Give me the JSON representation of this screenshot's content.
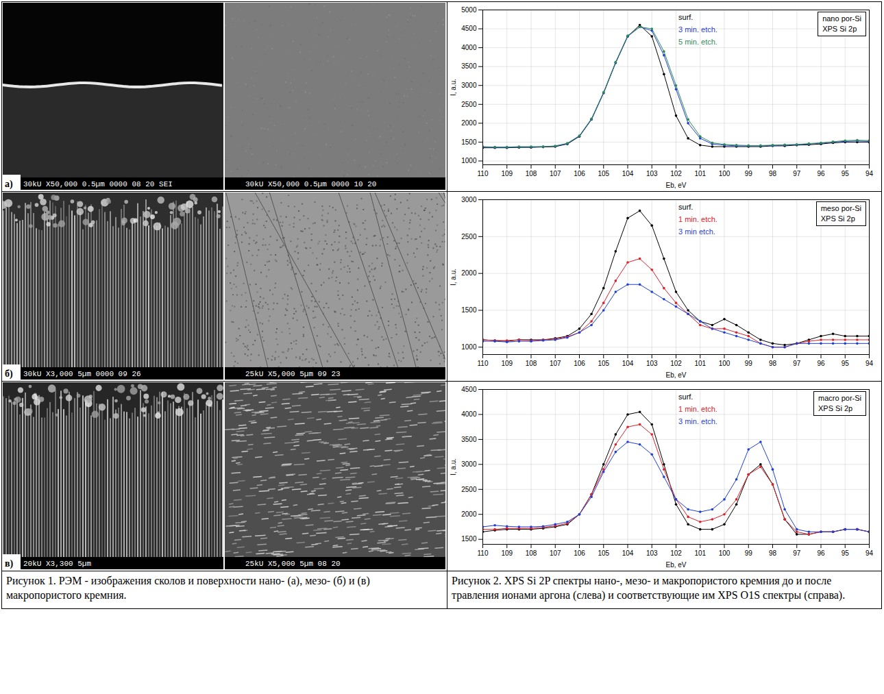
{
  "figure_1": {
    "caption": "Рисунок 1. РЭМ - изображения сколов и поверхности нано- (а), мезо- (б) и (в) макропористого кремния.",
    "panels": [
      {
        "letter": "а)",
        "images": [
          {
            "footer": "30kU X50,000 0.5µm 0000 08 20 SEI"
          },
          {
            "footer": "30kU X50,000 0.5µm 0000 10 20"
          }
        ]
      },
      {
        "letter": "б)",
        "images": [
          {
            "footer": "30kU X3,000 5µm 0000 09 26"
          },
          {
            "footer": "25kU X5,000 5µm 09 23"
          }
        ]
      },
      {
        "letter": "в)",
        "images": [
          {
            "footer": "20kU X3,300 5µm"
          },
          {
            "footer": "25kU X5,000 5µm 08 20"
          }
        ]
      }
    ]
  },
  "figure_2": {
    "caption": "Рисунок 2. XPS Si 2P спектры нано-, мезо- и макропористого кремния до и после травления ионами аргона (слева) и соответствующие им XPS O1S спектры (справа)."
  },
  "chart_data": [
    {
      "type": "line",
      "annotations": [
        "nano por-Si",
        "XPS Si 2p"
      ],
      "x_label": "Eb, eV",
      "y_label": "I, a.u.",
      "x": [
        110,
        109.5,
        109,
        108.5,
        108,
        107.5,
        107,
        106.5,
        106,
        105.5,
        105,
        104.5,
        104,
        103.5,
        103,
        102.5,
        102,
        101.5,
        101,
        100.5,
        100,
        99.5,
        99,
        98.5,
        98,
        97.5,
        97,
        96.5,
        96,
        95.5,
        95,
        94.5,
        94
      ],
      "xlim": [
        110,
        94
      ],
      "xticks": [
        110,
        109,
        108,
        107,
        106,
        105,
        104,
        103,
        102,
        101,
        100,
        99,
        98,
        97,
        96,
        95,
        94
      ],
      "ylim": [
        900,
        5000
      ],
      "yticks": [
        1000,
        1500,
        2000,
        2500,
        3000,
        3500,
        4000,
        4500,
        5000
      ],
      "grid": true,
      "marker": "circle",
      "series": [
        {
          "name": "surf.",
          "color": "#000000",
          "values": [
            1350,
            1350,
            1350,
            1360,
            1360,
            1370,
            1380,
            1450,
            1650,
            2100,
            2800,
            3600,
            4300,
            4600,
            4300,
            3300,
            2200,
            1600,
            1420,
            1380,
            1380,
            1380,
            1380,
            1380,
            1400,
            1400,
            1420,
            1430,
            1450,
            1480,
            1500,
            1500,
            1500
          ]
        },
        {
          "name": "3 min. etch.",
          "color": "#1f3fd6",
          "values": [
            1370,
            1360,
            1360,
            1370,
            1370,
            1380,
            1390,
            1460,
            1660,
            2100,
            2800,
            3600,
            4300,
            4550,
            4450,
            3800,
            2900,
            2000,
            1600,
            1450,
            1420,
            1400,
            1400,
            1400,
            1410,
            1420,
            1430,
            1450,
            1470,
            1500,
            1520,
            1530,
            1520
          ]
        },
        {
          "name": "5 min. etch.",
          "color": "#2e8b57",
          "values": [
            1380,
            1370,
            1370,
            1380,
            1380,
            1380,
            1400,
            1470,
            1670,
            2120,
            2820,
            3620,
            4320,
            4550,
            4500,
            3900,
            3000,
            2100,
            1650,
            1480,
            1440,
            1420,
            1410,
            1410,
            1420,
            1430,
            1440,
            1460,
            1480,
            1510,
            1540,
            1550,
            1540
          ]
        }
      ]
    },
    {
      "type": "line",
      "annotations": [
        "meso por-Si",
        "XPS Si 2p"
      ],
      "x_label": "Eb, eV",
      "y_label": "I, a.u.",
      "x": [
        110,
        109.5,
        109,
        108.5,
        108,
        107.5,
        107,
        106.5,
        106,
        105.5,
        105,
        104.5,
        104,
        103.5,
        103,
        102.5,
        102,
        101.5,
        101,
        100.5,
        100,
        99.5,
        99,
        98.5,
        98,
        97.5,
        97,
        96.5,
        96,
        95.5,
        95,
        94.5,
        94
      ],
      "xlim": [
        110,
        94
      ],
      "xticks": [
        110,
        109,
        108,
        107,
        106,
        105,
        104,
        103,
        102,
        101,
        100,
        99,
        98,
        97,
        96,
        95,
        94
      ],
      "ylim": [
        900,
        3000
      ],
      "yticks": [
        1000,
        1500,
        2000,
        2500,
        3000
      ],
      "grid": true,
      "marker": "circle",
      "series": [
        {
          "name": "surf.",
          "color": "#000000",
          "values": [
            1100,
            1090,
            1080,
            1100,
            1100,
            1100,
            1120,
            1150,
            1250,
            1450,
            1800,
            2300,
            2750,
            2850,
            2650,
            2200,
            1750,
            1500,
            1350,
            1300,
            1380,
            1300,
            1200,
            1100,
            1050,
            1030,
            1050,
            1100,
            1150,
            1180,
            1150,
            1150,
            1150
          ]
        },
        {
          "name": "1 min. etch.",
          "color": "#e0202a",
          "values": [
            1100,
            1090,
            1090,
            1100,
            1090,
            1100,
            1110,
            1140,
            1200,
            1350,
            1600,
            1900,
            2150,
            2200,
            2050,
            1800,
            1600,
            1450,
            1300,
            1250,
            1250,
            1200,
            1150,
            1050,
            1000,
            1000,
            1050,
            1080,
            1100,
            1100,
            1100,
            1100,
            1100
          ]
        },
        {
          "name": "3 min etch.",
          "color": "#1f3fd6",
          "values": [
            1080,
            1080,
            1070,
            1080,
            1080,
            1090,
            1100,
            1130,
            1200,
            1300,
            1500,
            1750,
            1850,
            1850,
            1750,
            1650,
            1550,
            1450,
            1350,
            1250,
            1200,
            1150,
            1100,
            1050,
            1000,
            1000,
            1050,
            1050,
            1050,
            1050,
            1050,
            1050,
            1050
          ]
        }
      ]
    },
    {
      "type": "line",
      "annotations": [
        "macro por-Si",
        "XPS Si 2p"
      ],
      "x_label": "Eb, eV",
      "y_label": "I, a.u.",
      "x": [
        110,
        109.5,
        109,
        108.5,
        108,
        107.5,
        107,
        106.5,
        106,
        105.5,
        105,
        104.5,
        104,
        103.5,
        103,
        102.5,
        102,
        101.5,
        101,
        100.5,
        100,
        99.5,
        99,
        98.5,
        98,
        97.5,
        97,
        96.5,
        96,
        95.5,
        95,
        94.5,
        94
      ],
      "xlim": [
        110,
        94
      ],
      "xticks": [
        110,
        109,
        108,
        107,
        106,
        105,
        104,
        103,
        102,
        101,
        100,
        99,
        98,
        97,
        96,
        95,
        94
      ],
      "ylim": [
        1400,
        4500
      ],
      "yticks": [
        1500,
        2000,
        2500,
        3000,
        3500,
        4000,
        4500
      ],
      "grid": true,
      "marker": "circle",
      "series": [
        {
          "name": "surf.",
          "color": "#000000",
          "values": [
            1650,
            1680,
            1700,
            1700,
            1700,
            1720,
            1750,
            1800,
            2000,
            2400,
            3000,
            3600,
            4000,
            4050,
            3800,
            3000,
            2200,
            1800,
            1700,
            1700,
            1800,
            2200,
            2800,
            3000,
            2600,
            1900,
            1600,
            1600,
            1650,
            1650,
            1700,
            1700,
            1650
          ]
        },
        {
          "name": "1 min. etch.",
          "color": "#e0202a",
          "values": [
            1700,
            1700,
            1720,
            1720,
            1720,
            1740,
            1770,
            1820,
            2000,
            2400,
            2900,
            3400,
            3750,
            3800,
            3600,
            2900,
            2300,
            1950,
            1850,
            1900,
            2000,
            2300,
            2800,
            2950,
            2600,
            1900,
            1650,
            1600,
            1650,
            1650,
            1700,
            1700,
            1650
          ]
        },
        {
          "name": "3 min. etch.",
          "color": "#1f3fd6",
          "values": [
            1750,
            1780,
            1760,
            1750,
            1750,
            1760,
            1800,
            1850,
            2000,
            2350,
            2850,
            3250,
            3450,
            3400,
            3200,
            2750,
            2300,
            2100,
            2050,
            2100,
            2300,
            2700,
            3300,
            3450,
            2900,
            2100,
            1700,
            1650,
            1650,
            1650,
            1700,
            1700,
            1650
          ]
        }
      ]
    }
  ]
}
